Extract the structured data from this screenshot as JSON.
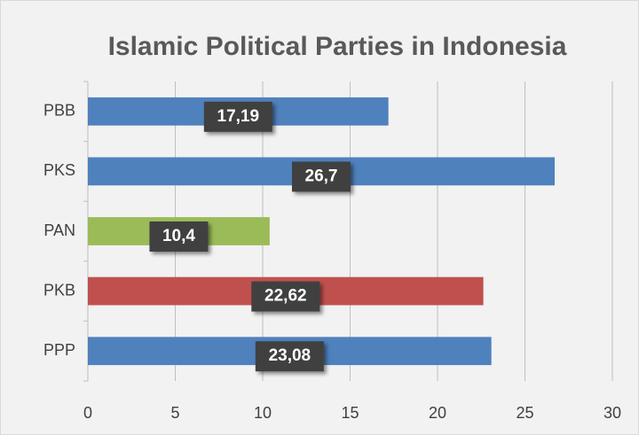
{
  "chart_data": {
    "type": "barh",
    "title": "Islamic Political Parties in Indonesia",
    "categories": [
      "PBB",
      "PKS",
      "PAN",
      "PKB",
      "PPP"
    ],
    "values": [
      17.19,
      26.7,
      10.4,
      22.62,
      23.08
    ],
    "value_labels": [
      "17,19",
      "26,7",
      "10,4",
      "22,62",
      "23,08"
    ],
    "colors": [
      "#4f81bd",
      "#4f81bd",
      "#9bbb59",
      "#c0504d",
      "#4f81bd"
    ],
    "xlim": [
      0,
      30
    ],
    "xticks": [
      0,
      5,
      10,
      15,
      20,
      25,
      30
    ],
    "grid": true
  }
}
